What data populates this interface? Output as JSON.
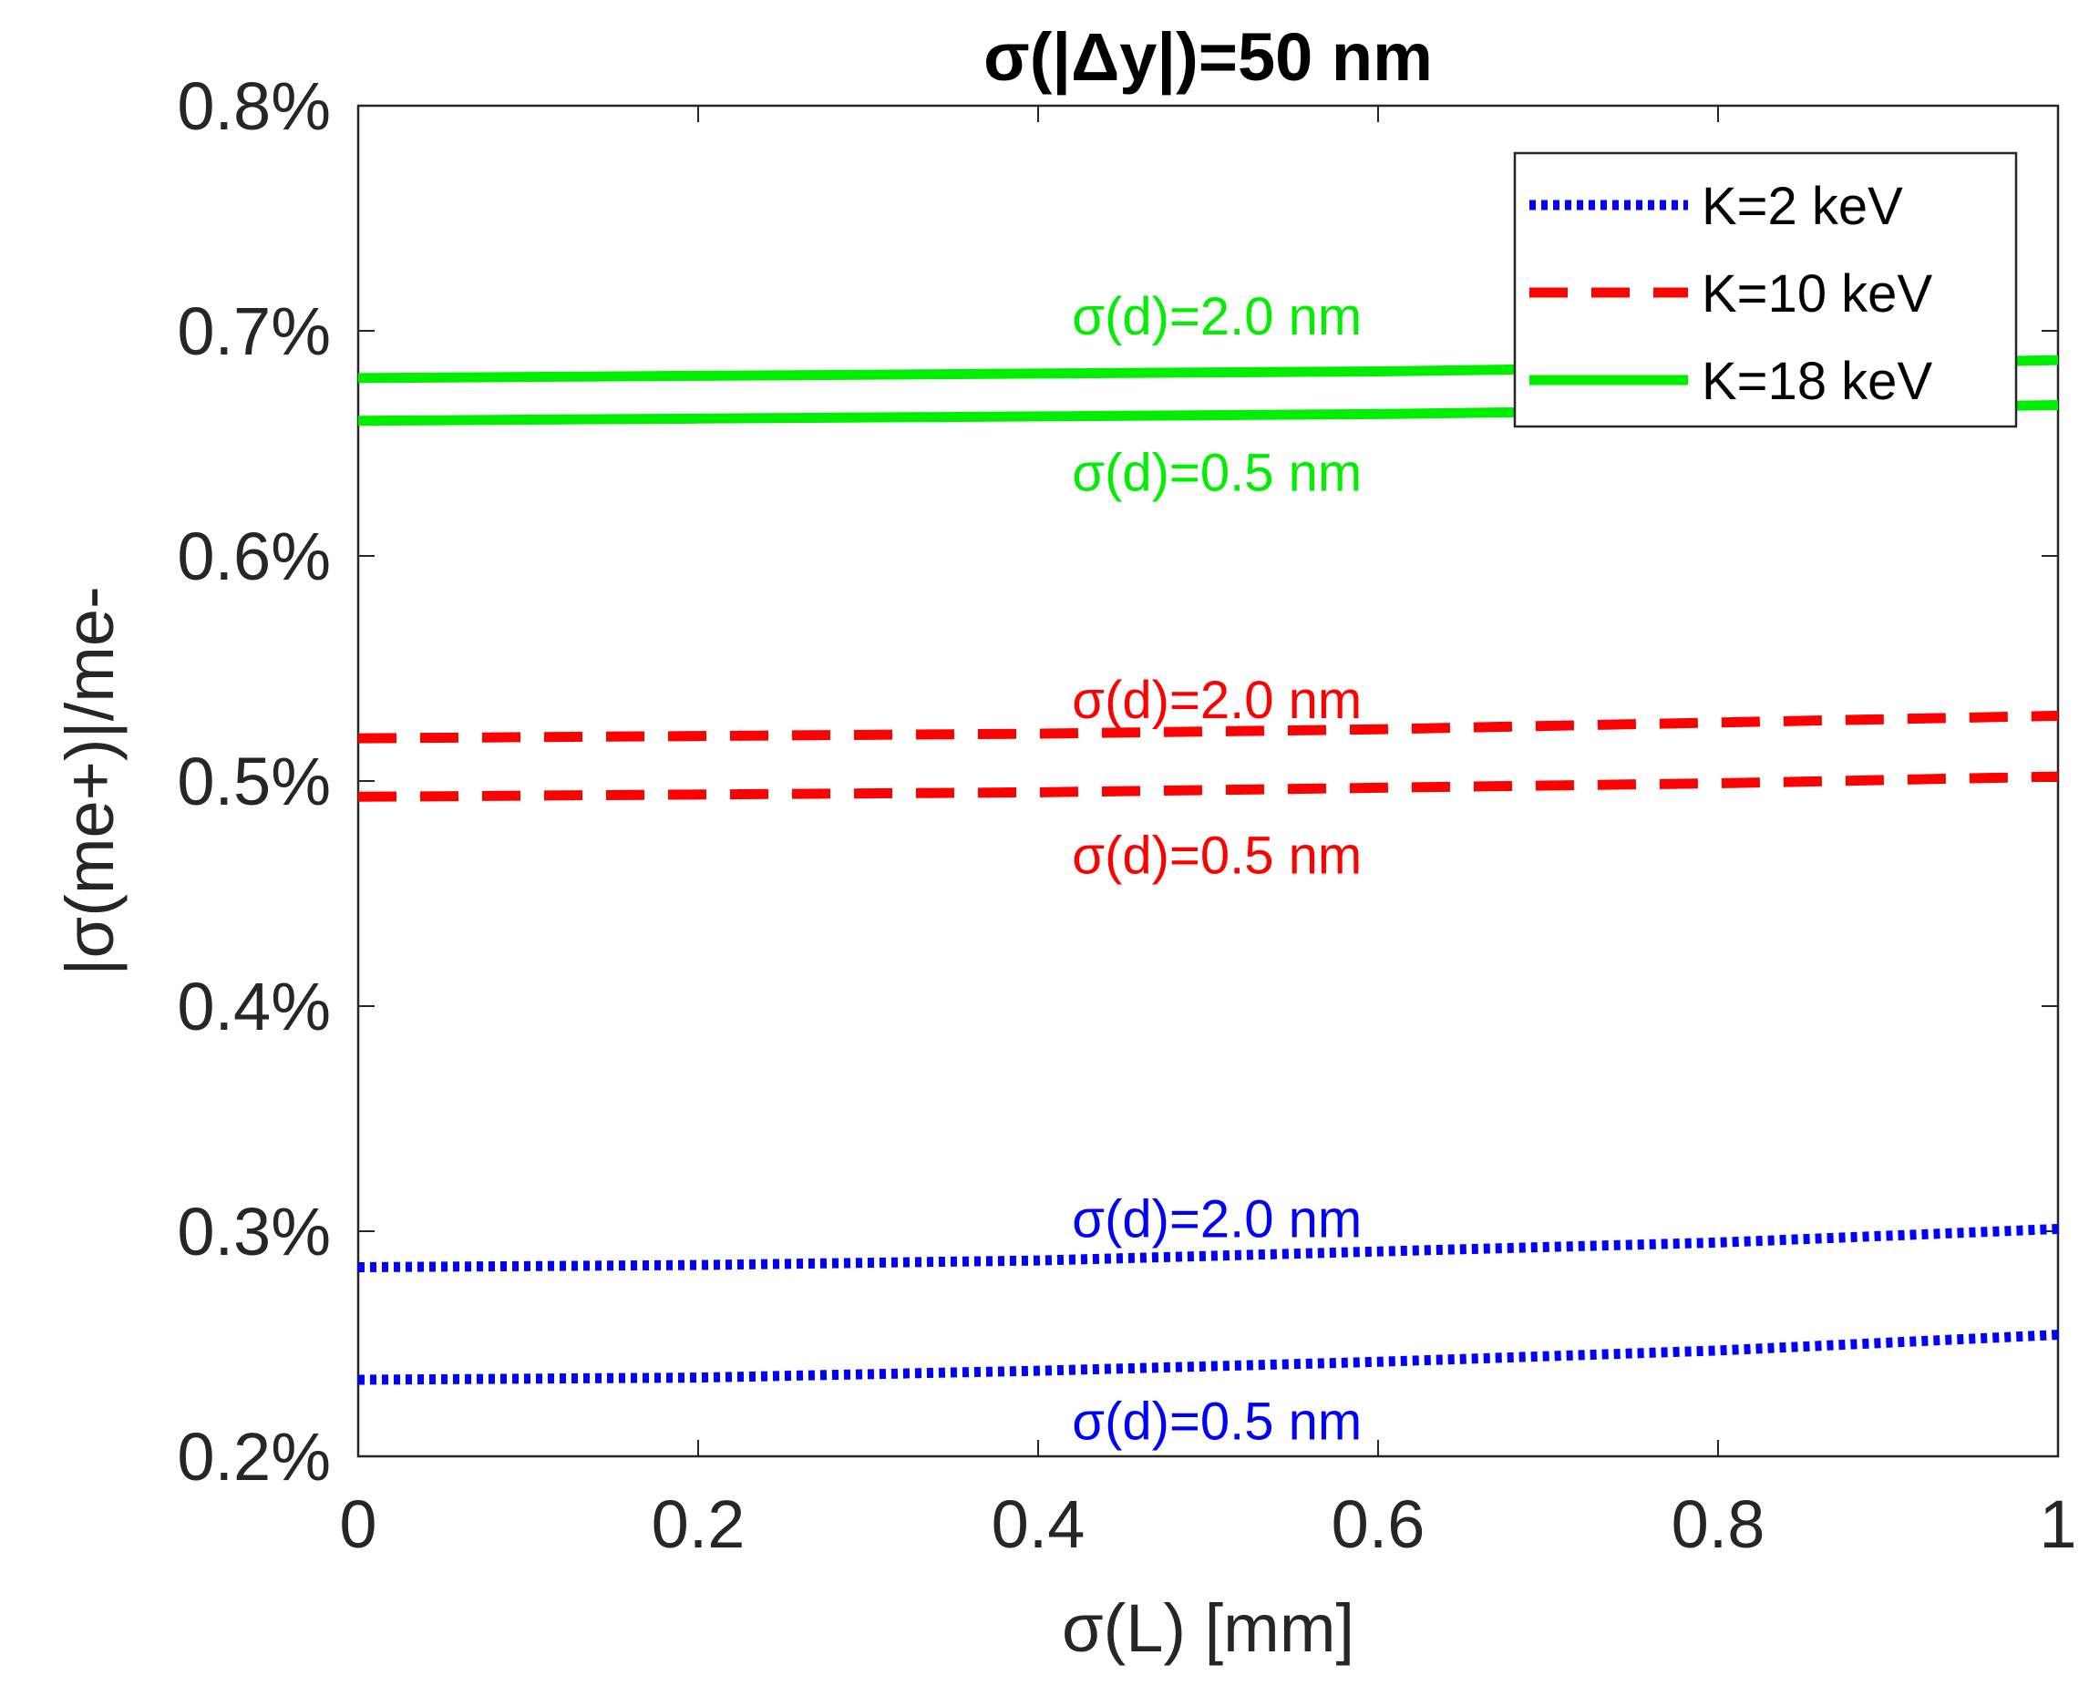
{
  "chart_data": {
    "type": "line",
    "title": "σ(|Δy|)=50 nm",
    "xlabel": "σ(L) [mm]",
    "ylabel": "|σ(me+)|/me-",
    "xlim": [
      0,
      1
    ],
    "ylim": [
      0.2,
      0.8
    ],
    "x_ticks": [
      "0",
      "0.2",
      "0.4",
      "0.6",
      "0.8",
      "1"
    ],
    "y_ticks": [
      "0.2%",
      "0.3%",
      "0.4%",
      "0.5%",
      "0.6%",
      "0.7%",
      "0.8%"
    ],
    "x": [
      0,
      0.2,
      0.4,
      0.6,
      0.8,
      1.0
    ],
    "series": [
      {
        "name": "K=2 keV",
        "group": "K2",
        "sigma_d": "σ(d)=2.0 nm",
        "color": "#0000ff",
        "style": "dotted",
        "values": [
          0.284,
          0.285,
          0.287,
          0.291,
          0.295,
          0.301
        ]
      },
      {
        "name": "K=2 keV",
        "group": "K2",
        "sigma_d": "σ(d)=0.5 nm",
        "color": "#0000ff",
        "style": "dotted",
        "values": [
          0.234,
          0.235,
          0.238,
          0.242,
          0.247,
          0.254
        ]
      },
      {
        "name": "K=10 keV",
        "group": "K10",
        "sigma_d": "σ(d)=2.0 nm",
        "color": "#ff0000",
        "style": "dashed",
        "values": [
          0.519,
          0.52,
          0.521,
          0.523,
          0.526,
          0.529
        ]
      },
      {
        "name": "K=10 keV",
        "group": "K10",
        "sigma_d": "σ(d)=0.5 nm",
        "color": "#ff0000",
        "style": "dashed",
        "values": [
          0.493,
          0.494,
          0.495,
          0.497,
          0.499,
          0.502
        ]
      },
      {
        "name": "K=18 keV",
        "group": "K18",
        "sigma_d": "σ(d)=2.0 nm",
        "color": "#00ee00",
        "style": "solid",
        "values": [
          0.679,
          0.68,
          0.681,
          0.682,
          0.684,
          0.687
        ]
      },
      {
        "name": "K=18 keV",
        "group": "K18",
        "sigma_d": "σ(d)=0.5 nm",
        "color": "#00ee00",
        "style": "solid",
        "values": [
          0.66,
          0.661,
          0.662,
          0.663,
          0.665,
          0.667
        ]
      }
    ],
    "legend": [
      {
        "label": "K=2 keV",
        "color": "#0000ff",
        "style": "dotted"
      },
      {
        "label": "K=10 keV",
        "color": "#ff0000",
        "style": "dashed"
      },
      {
        "label": "K=18 keV",
        "color": "#00ee00",
        "style": "solid"
      }
    ],
    "legend_position": "top-right",
    "annotations": [
      {
        "text": "σ(d)=2.0 nm",
        "color": "#00ee00",
        "x": 0.42,
        "y": 0.7065
      },
      {
        "text": "σ(d)=0.5 nm",
        "color": "#00ee00",
        "x": 0.42,
        "y": 0.637
      },
      {
        "text": "σ(d)=2.0 nm",
        "color": "#ff0000",
        "x": 0.42,
        "y": 0.536
      },
      {
        "text": "σ(d)=0.5 nm",
        "color": "#ff0000",
        "x": 0.42,
        "y": 0.467
      },
      {
        "text": "σ(d)=2.0 nm",
        "color": "#0000ff",
        "x": 0.42,
        "y": 0.3055
      },
      {
        "text": "σ(d)=0.5 nm",
        "color": "#0000ff",
        "x": 0.42,
        "y": 0.2155
      }
    ],
    "grid": false
  }
}
